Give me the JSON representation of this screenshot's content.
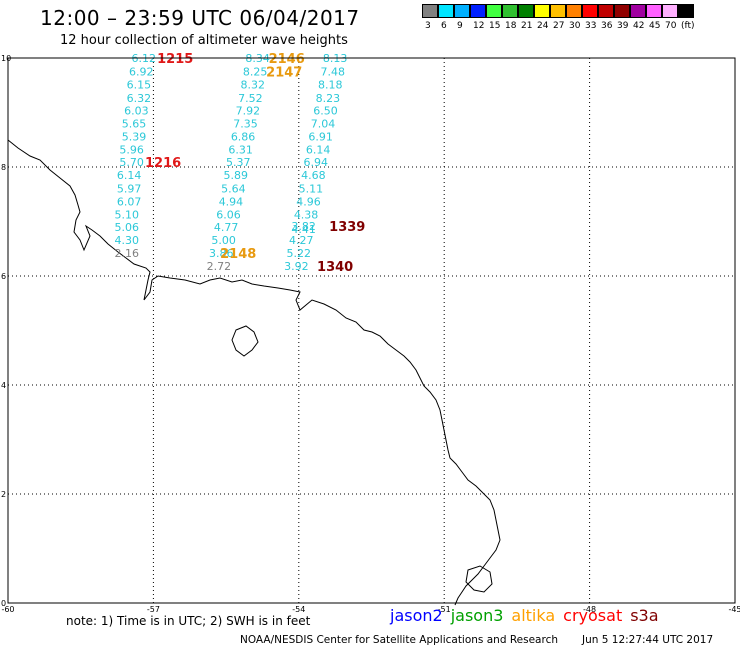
{
  "header": {
    "title": "12:00 – 23:59 UTC 06/04/2017",
    "subtitle": "12 hour collection of altimeter wave heights"
  },
  "legend": {
    "colors": [
      "#808080",
      "#00e5ff",
      "#00b0ff",
      "#0020ff",
      "#40ff40",
      "#30c030",
      "#008000",
      "#ffff00",
      "#ffc000",
      "#ff8000",
      "#ff0000",
      "#c00000",
      "#900000",
      "#a000a0",
      "#ff60ff",
      "#ffb0ff",
      "#000000"
    ],
    "labels": [
      "3",
      "6",
      "9",
      "12",
      "15",
      "18",
      "21",
      "24",
      "27",
      "30",
      "33",
      "36",
      "39",
      "42",
      "45",
      "70",
      "(ft)"
    ]
  },
  "map_grid": {
    "lon_labels": [
      "-60",
      "-57",
      "-54",
      "-51",
      "-48",
      "-45"
    ],
    "lat_labels": [
      "10",
      "8",
      "6",
      "4",
      "2",
      "0"
    ],
    "lon_values": [
      -60,
      -57,
      -54,
      -51,
      -48,
      -45
    ],
    "lat_values": [
      10,
      8,
      6,
      4,
      2,
      0
    ]
  },
  "colors": {
    "cyan": "#2cc8d8",
    "gray": "#808080",
    "orange": "#e89a10",
    "red": "#e01818",
    "darkred": "#800000",
    "jason2": "#0000ff",
    "jason3": "#00a000",
    "altika": "#ffa000",
    "cryosat": "#ff0000",
    "s3a": "#800000"
  },
  "tracks": [
    {
      "name": "track-1215",
      "values": [
        {
          "v": "6.12",
          "c": "cyan",
          "lon": -57.2,
          "lat": 10.0
        },
        {
          "v": "6.92",
          "c": "cyan",
          "lon": -57.25,
          "lat": 9.75
        },
        {
          "v": "6.15",
          "c": "cyan",
          "lon": -57.3,
          "lat": 9.51
        },
        {
          "v": "6.32",
          "c": "cyan",
          "lon": -57.3,
          "lat": 9.27
        },
        {
          "v": "6.03",
          "c": "cyan",
          "lon": -57.35,
          "lat": 9.04
        },
        {
          "v": "5.65",
          "c": "cyan",
          "lon": -57.4,
          "lat": 8.8
        },
        {
          "v": "5.39",
          "c": "cyan",
          "lon": -57.4,
          "lat": 8.56
        },
        {
          "v": "5.96",
          "c": "cyan",
          "lon": -57.45,
          "lat": 8.32
        },
        {
          "v": "5.70",
          "c": "cyan",
          "lon": -57.45,
          "lat": 8.09
        },
        {
          "v": "6.14",
          "c": "cyan",
          "lon": -57.5,
          "lat": 7.85
        },
        {
          "v": "5.97",
          "c": "cyan",
          "lon": -57.5,
          "lat": 7.61
        },
        {
          "v": "6.07",
          "c": "cyan",
          "lon": -57.5,
          "lat": 7.37
        },
        {
          "v": "5.10",
          "c": "cyan",
          "lon": -57.55,
          "lat": 7.13
        },
        {
          "v": "5.06",
          "c": "cyan",
          "lon": -57.55,
          "lat": 6.9
        },
        {
          "v": "4.30",
          "c": "cyan",
          "lon": -57.55,
          "lat": 6.66
        },
        {
          "v": "2.16",
          "c": "gray",
          "lon": -57.55,
          "lat": 6.42
        }
      ]
    },
    {
      "name": "track-2148",
      "values": [
        {
          "v": "8.34",
          "c": "cyan",
          "lon": -54.85,
          "lat": 10.0
        },
        {
          "v": "8.25",
          "c": "cyan",
          "lon": -54.9,
          "lat": 9.75
        },
        {
          "v": "8.32",
          "c": "cyan",
          "lon": -54.95,
          "lat": 9.51
        },
        {
          "v": "7.52",
          "c": "cyan",
          "lon": -55.0,
          "lat": 9.27
        },
        {
          "v": "7.92",
          "c": "cyan",
          "lon": -55.05,
          "lat": 9.04
        },
        {
          "v": "7.35",
          "c": "cyan",
          "lon": -55.1,
          "lat": 8.8
        },
        {
          "v": "6.86",
          "c": "cyan",
          "lon": -55.15,
          "lat": 8.56
        },
        {
          "v": "6.31",
          "c": "cyan",
          "lon": -55.2,
          "lat": 8.32
        },
        {
          "v": "5.37",
          "c": "cyan",
          "lon": -55.25,
          "lat": 8.09
        },
        {
          "v": "5.89",
          "c": "cyan",
          "lon": -55.3,
          "lat": 7.85
        },
        {
          "v": "5.64",
          "c": "cyan",
          "lon": -55.35,
          "lat": 7.61
        },
        {
          "v": "4.94",
          "c": "cyan",
          "lon": -55.4,
          "lat": 7.37
        },
        {
          "v": "6.06",
          "c": "cyan",
          "lon": -55.45,
          "lat": 7.13
        },
        {
          "v": "4.77",
          "c": "cyan",
          "lon": -55.5,
          "lat": 6.9
        },
        {
          "v": "5.00",
          "c": "cyan",
          "lon": -55.55,
          "lat": 6.66
        },
        {
          "v": "3.86",
          "c": "cyan",
          "lon": -55.6,
          "lat": 6.42
        },
        {
          "v": "2.72",
          "c": "gray",
          "lon": -55.65,
          "lat": 6.18
        }
      ]
    },
    {
      "name": "track-1340",
      "values": [
        {
          "v": "8.13",
          "c": "cyan",
          "lon": -53.25,
          "lat": 10.0
        },
        {
          "v": "7.48",
          "c": "cyan",
          "lon": -53.3,
          "lat": 9.75
        },
        {
          "v": "8.18",
          "c": "cyan",
          "lon": -53.35,
          "lat": 9.51
        },
        {
          "v": "8.23",
          "c": "cyan",
          "lon": -53.4,
          "lat": 9.27
        },
        {
          "v": "6.50",
          "c": "cyan",
          "lon": -53.45,
          "lat": 9.04
        },
        {
          "v": "7.04",
          "c": "cyan",
          "lon": -53.5,
          "lat": 8.8
        },
        {
          "v": "6.91",
          "c": "cyan",
          "lon": -53.55,
          "lat": 8.56
        },
        {
          "v": "6.14",
          "c": "cyan",
          "lon": -53.6,
          "lat": 8.32
        },
        {
          "v": "6.94",
          "c": "cyan",
          "lon": -53.65,
          "lat": 8.09
        },
        {
          "v": "4.68",
          "c": "cyan",
          "lon": -53.7,
          "lat": 7.85
        },
        {
          "v": "5.11",
          "c": "cyan",
          "lon": -53.75,
          "lat": 7.61
        },
        {
          "v": "4.96",
          "c": "cyan",
          "lon": -53.8,
          "lat": 7.37
        },
        {
          "v": "4.38",
          "c": "cyan",
          "lon": -53.85,
          "lat": 7.13
        },
        {
          "v": "3.82",
          "c": "cyan",
          "lon": -53.9,
          "lat": 6.92
        },
        {
          "v": "4.41",
          "c": "cyan",
          "lon": -53.9,
          "lat": 6.86
        },
        {
          "v": "4.27",
          "c": "cyan",
          "lon": -53.95,
          "lat": 6.66
        },
        {
          "v": "5.22",
          "c": "cyan",
          "lon": -54.0,
          "lat": 6.42
        },
        {
          "v": "3.92",
          "c": "cyan",
          "lon": -54.05,
          "lat": 6.18
        }
      ]
    }
  ],
  "pass_labels": [
    {
      "v": "1215",
      "c": "red",
      "lon": -56.55,
      "lat": 10.0
    },
    {
      "v": "1216",
      "c": "red",
      "lon": -56.8,
      "lat": 8.09
    },
    {
      "v": "2146",
      "c": "orange",
      "lon": -54.25,
      "lat": 10.0
    },
    {
      "v": "2147",
      "c": "orange",
      "lon": -54.3,
      "lat": 9.75
    },
    {
      "v": "2148",
      "c": "orange",
      "lon": -55.25,
      "lat": 6.42
    },
    {
      "v": "1339",
      "c": "darkred",
      "lon": -53.0,
      "lat": 6.92
    },
    {
      "v": "1340",
      "c": "darkred",
      "lon": -53.25,
      "lat": 6.18
    }
  ],
  "footer": {
    "note": "note: 1) Time is in UTC; 2) SWH is in feet",
    "satellites": [
      {
        "label": "jason2",
        "c": "jason2"
      },
      {
        "label": "jason3",
        "c": "jason3"
      },
      {
        "label": "altika",
        "c": "altika"
      },
      {
        "label": "cryosat",
        "c": "cryosat"
      },
      {
        "label": "s3a",
        "c": "s3a"
      }
    ],
    "credit": "NOAA/NESDIS Center for Satellite Applications and Research",
    "timestamp": "Jun  5 12:27:44 UTC 2017"
  }
}
